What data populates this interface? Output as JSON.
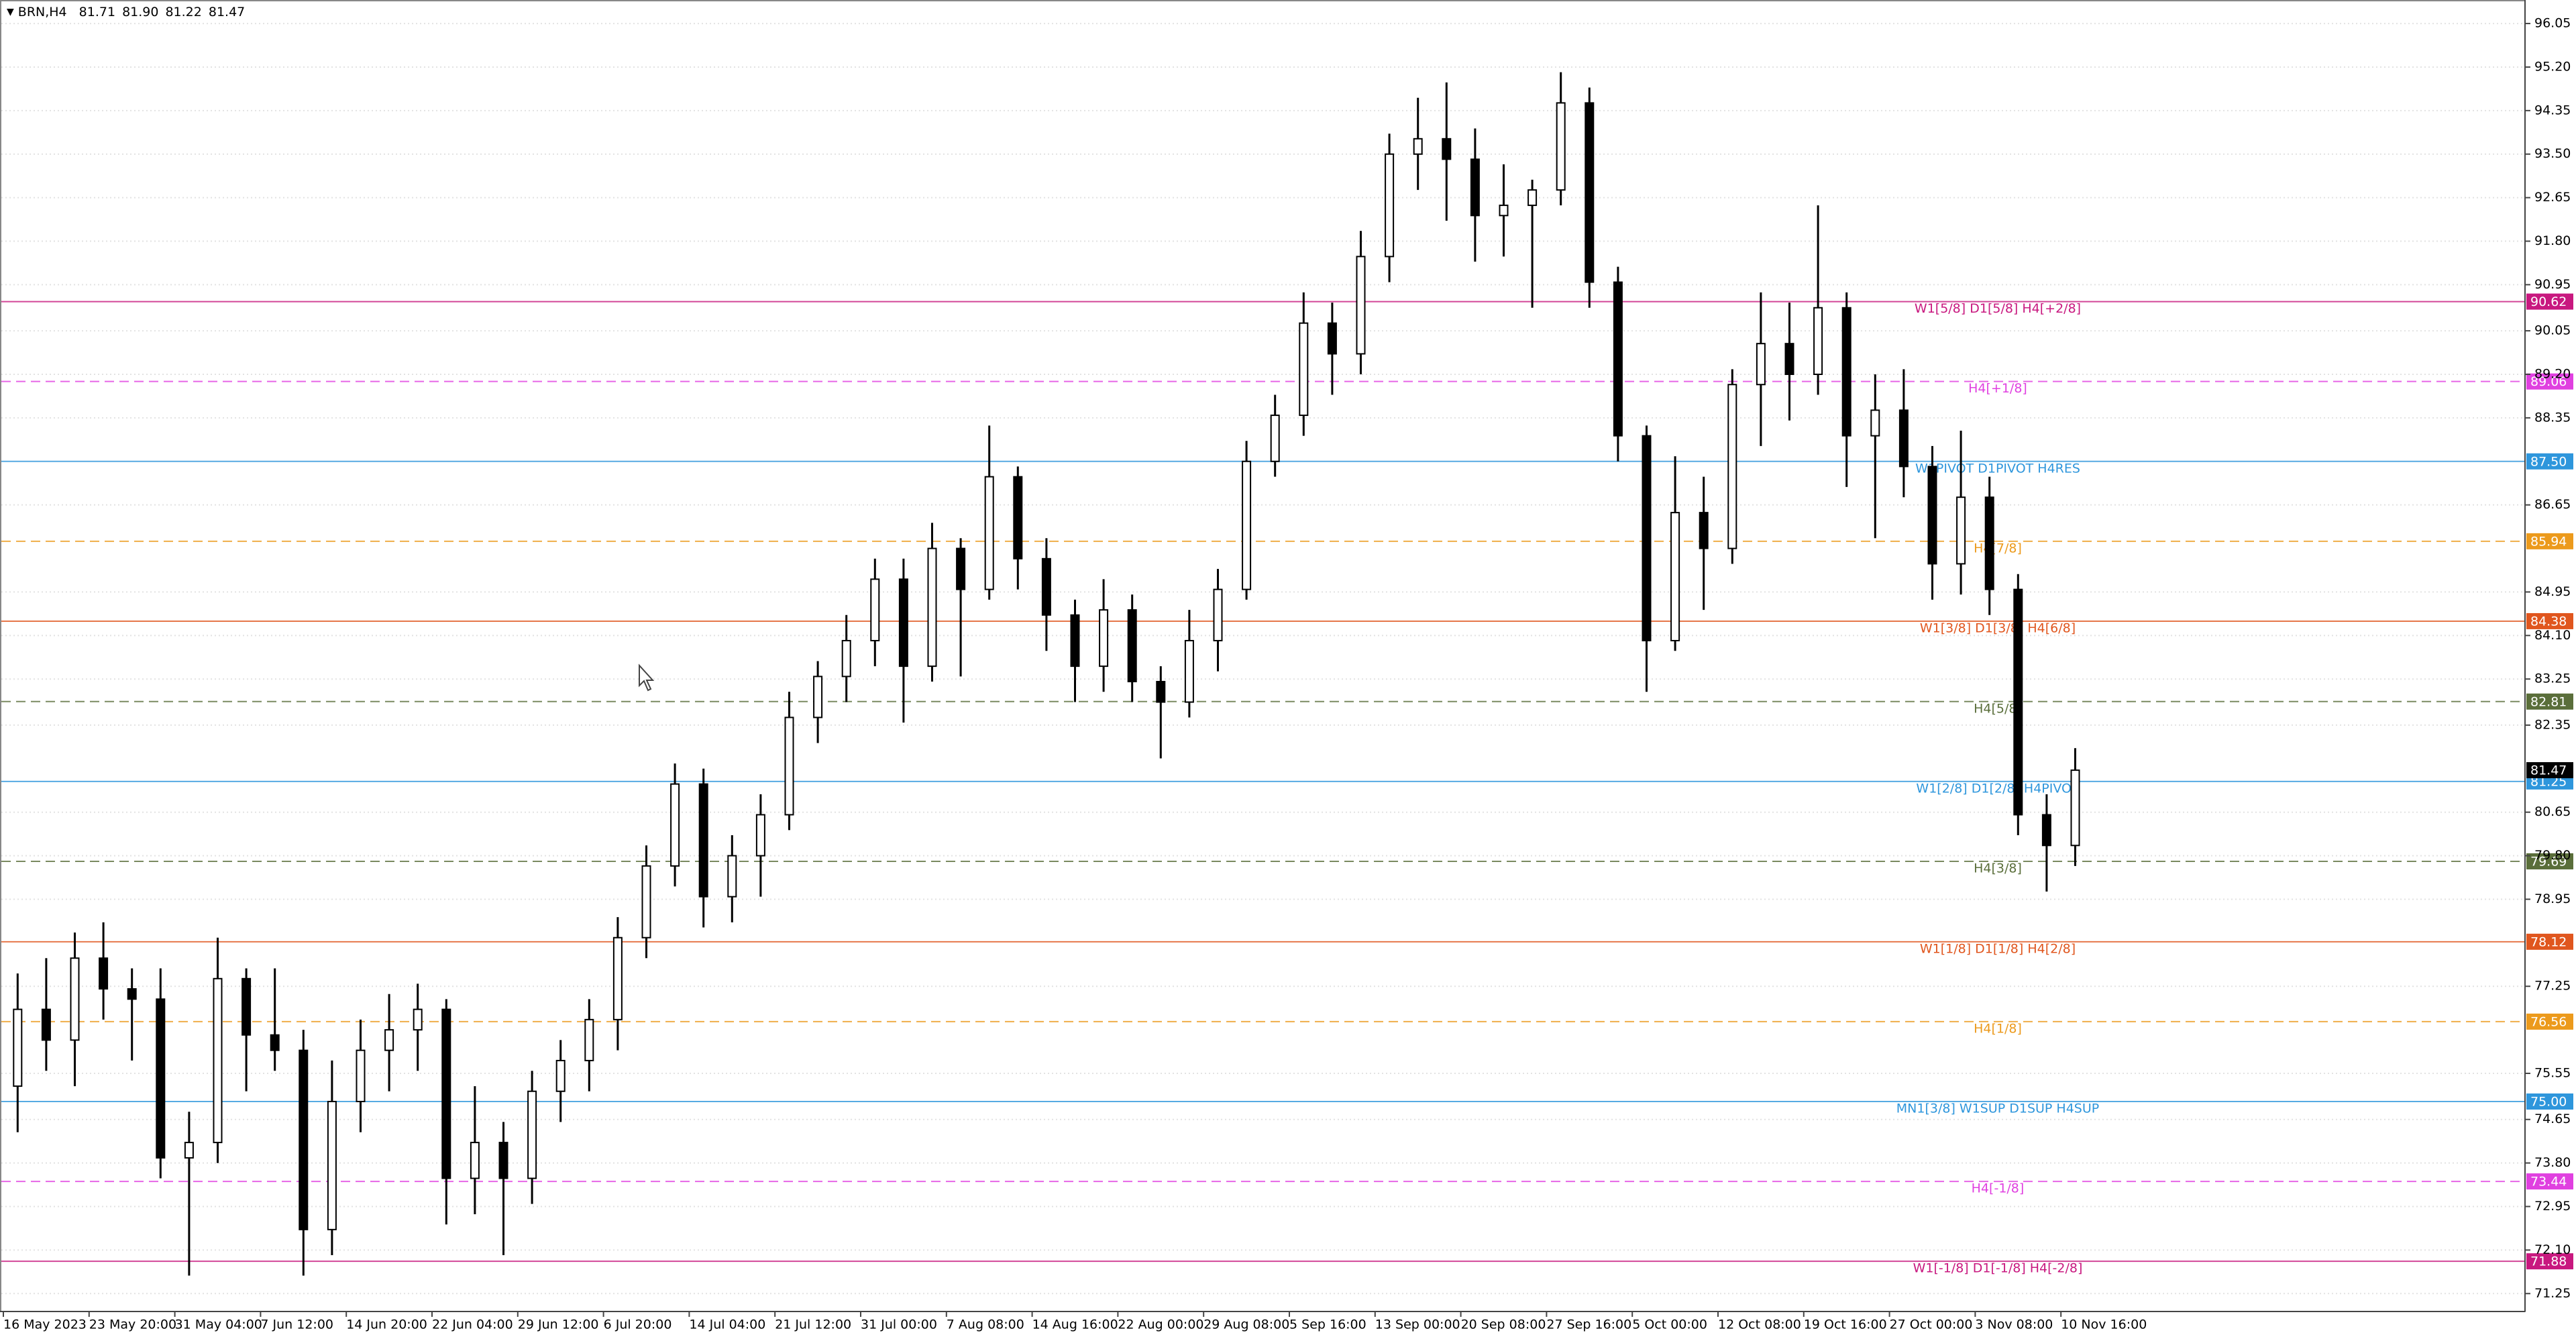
{
  "chart_data": {
    "type": "candlestick",
    "title": "BRN,H4",
    "title_prices": [
      "81.71",
      "81.90",
      "81.22",
      "81.47"
    ],
    "x": [
      "16 May 2023",
      null,
      null,
      "23 May 20:00",
      null,
      null,
      "31 May 04:00",
      null,
      null,
      "7 Jun 12:00",
      null,
      null,
      "14 Jun 20:00",
      null,
      null,
      "22 Jun 04:00",
      null,
      null,
      "29 Jun 12:00",
      null,
      null,
      "6 Jul 20:00",
      null,
      null,
      "14 Jul 04:00",
      null,
      null,
      "21 Jul 12:00",
      null,
      null,
      "31 Jul 00:00",
      null,
      null,
      "7 Aug 08:00",
      null,
      null,
      "14 Aug 16:00",
      null,
      null,
      "22 Aug 00:00",
      null,
      null,
      "29 Aug 08:00",
      null,
      null,
      "5 Sep 16:00",
      null,
      null,
      "13 Sep 00:00",
      null,
      null,
      "20 Sep 08:00",
      null,
      null,
      "27 Sep 16:00",
      null,
      null,
      "5 Oct 00:00",
      null,
      null,
      "12 Oct 08:00",
      null,
      null,
      "19 Oct 16:00",
      null,
      null,
      "27 Oct 00:00",
      null,
      null,
      "3 Nov 08:00",
      null,
      null,
      "10 Nov 16:00"
    ],
    "open": [
      75.3,
      76.8,
      76.2,
      77.8,
      77.2,
      77.0,
      73.9,
      74.2,
      77.4,
      76.3,
      76.0,
      72.5,
      75.0,
      76.0,
      76.4,
      76.8,
      73.5,
      74.2,
      73.5,
      75.2,
      75.8,
      76.6,
      78.2,
      79.6,
      81.2,
      79.0,
      79.8,
      80.6,
      82.5,
      83.3,
      84.0,
      85.2,
      83.5,
      85.8,
      85.0,
      87.2,
      85.6,
      84.5,
      83.5,
      84.6,
      83.2,
      82.8,
      84.0,
      85.0,
      87.5,
      88.4,
      90.2,
      89.6,
      91.5,
      93.5,
      93.8,
      93.4,
      92.3,
      92.5,
      92.8,
      94.5,
      91.0,
      88.0,
      84.0,
      86.5,
      85.8,
      89.0,
      89.8,
      89.2,
      90.5,
      88.0,
      88.5,
      87.4,
      85.5,
      86.8,
      85.0,
      80.6,
      80.0
    ],
    "high": [
      77.5,
      77.8,
      78.3,
      78.5,
      77.6,
      77.6,
      74.8,
      78.2,
      77.6,
      77.6,
      76.4,
      75.8,
      76.6,
      77.1,
      77.3,
      77.0,
      75.3,
      74.6,
      75.6,
      76.2,
      77.0,
      78.6,
      80.0,
      81.6,
      81.5,
      80.2,
      81.0,
      83.0,
      83.6,
      84.5,
      85.6,
      85.6,
      86.3,
      86.0,
      88.2,
      87.4,
      86.0,
      84.8,
      85.2,
      84.9,
      83.5,
      84.6,
      85.4,
      87.9,
      88.8,
      90.8,
      90.6,
      92.0,
      93.9,
      94.6,
      94.9,
      94.0,
      93.3,
      93.0,
      95.1,
      94.8,
      91.3,
      88.2,
      87.6,
      87.2,
      89.3,
      90.8,
      90.6,
      92.5,
      90.8,
      89.2,
      89.3,
      87.8,
      88.1,
      87.2,
      85.3,
      81.0,
      81.9
    ],
    "low": [
      74.4,
      75.6,
      75.3,
      76.6,
      75.8,
      73.5,
      71.6,
      73.8,
      75.2,
      75.6,
      71.6,
      72.0,
      74.4,
      75.2,
      75.6,
      72.6,
      72.8,
      72.0,
      73.0,
      74.6,
      75.2,
      76.0,
      77.8,
      79.2,
      78.4,
      78.5,
      79.0,
      80.3,
      82.0,
      82.8,
      83.5,
      82.4,
      83.2,
      83.3,
      84.8,
      85.0,
      83.8,
      82.8,
      83.0,
      82.8,
      81.7,
      82.5,
      83.4,
      84.8,
      87.2,
      88.0,
      88.8,
      89.2,
      91.0,
      92.8,
      92.2,
      91.4,
      91.5,
      90.5,
      92.5,
      90.5,
      87.5,
      83.0,
      83.8,
      84.6,
      85.5,
      87.8,
      88.3,
      88.8,
      87.0,
      86.0,
      86.8,
      84.8,
      84.9,
      84.5,
      80.2,
      79.1,
      79.6
    ],
    "close": [
      76.8,
      76.2,
      77.8,
      77.2,
      77.0,
      73.9,
      74.2,
      77.4,
      76.3,
      76.0,
      72.5,
      75.0,
      76.0,
      76.4,
      76.8,
      73.5,
      74.2,
      73.5,
      75.2,
      75.8,
      76.6,
      78.2,
      79.6,
      81.2,
      79.0,
      79.8,
      80.6,
      82.5,
      83.3,
      84.0,
      85.2,
      83.5,
      85.8,
      85.0,
      87.2,
      85.6,
      84.5,
      83.5,
      84.6,
      83.2,
      82.8,
      84.0,
      85.0,
      87.5,
      88.4,
      90.2,
      89.6,
      91.5,
      93.5,
      93.8,
      93.4,
      92.3,
      92.5,
      92.8,
      94.5,
      91.0,
      88.0,
      84.0,
      86.5,
      85.8,
      89.0,
      89.8,
      89.2,
      90.5,
      88.0,
      88.5,
      87.4,
      85.5,
      86.8,
      85.0,
      80.6,
      80.0,
      81.47
    ],
    "ylim": [
      70.9,
      96.47
    ],
    "yticks": [
      96.05,
      {
        "value": 95.2,
        "label": "95.20"
      },
      94.35,
      {
        "value": 93.5,
        "label": "93.50"
      },
      92.65,
      {
        "value": 91.8,
        "label": "91.80"
      },
      90.95,
      90.05,
      {
        "value": 89.2,
        "label": "89.20"
      },
      88.35,
      86.65,
      84.95,
      {
        "value": 84.1,
        "label": "84.10"
      },
      83.25,
      82.35,
      80.65,
      {
        "value": 79.8,
        "label": "79.80"
      },
      78.95,
      77.25,
      75.55,
      74.65,
      {
        "value": 73.8,
        "label": "73.80"
      },
      72.95,
      {
        "value": 72.1,
        "label": "72.10"
      },
      71.25
    ],
    "grid": true,
    "last_price": 81.47,
    "levels": [
      {
        "name": "W1[5/8] D1[5/8] H4[+2/8]",
        "value": 90.62,
        "tag": "90.62",
        "color": "#c8187f",
        "dashed": false
      },
      {
        "name": "H4[+1/8]",
        "value": 89.06,
        "tag": "89.06",
        "color": "#e040e0",
        "dashed": true
      },
      {
        "name": "W1PIVOT D1PIVOT H4RES",
        "value": 87.5,
        "tag": "87.50",
        "color": "#2e96dc",
        "dashed": false
      },
      {
        "name": "H4[7/8]",
        "value": 85.94,
        "tag": "85.94",
        "color": "#ec9a1c",
        "dashed": true
      },
      {
        "name": "W1[3/8] D1[3/8] H4[6/8]",
        "value": 84.38,
        "tag": "84.38",
        "color": "#e0561e",
        "dashed": false
      },
      {
        "name": "H4[5/8]",
        "value": 82.81,
        "tag": "82.81",
        "color": "#5a6e3a",
        "dashed": true
      },
      {
        "name": "W1[2/8] D1[2/8] H4PIVOT",
        "value": 81.25,
        "tag": "81.25",
        "color": "#2e96dc",
        "dashed": false
      },
      {
        "name": "H4[3/8]",
        "value": 79.69,
        "tag": "79.69",
        "color": "#5a6e3a",
        "dashed": true
      },
      {
        "name": "W1[1/8] D1[1/8] H4[2/8]",
        "value": 78.12,
        "tag": "78.12",
        "color": "#e0561e",
        "dashed": false
      },
      {
        "name": "H4[1/8]",
        "value": 76.56,
        "tag": "76.56",
        "color": "#ec9a1c",
        "dashed": true
      },
      {
        "name": "MN1[3/8] W1SUP D1SUP H4SUP",
        "value": 75.0,
        "tag": "75.00",
        "color": "#2e96dc",
        "dashed": false
      },
      {
        "name": "H4[-1/8]",
        "value": 73.44,
        "tag": "73.44",
        "color": "#e040e0",
        "dashed": true
      },
      {
        "name": "W1[-1/8] D1[-1/8] H4[-2/8]",
        "value": 71.88,
        "tag": "71.88",
        "color": "#c8187f",
        "dashed": false
      }
    ]
  }
}
